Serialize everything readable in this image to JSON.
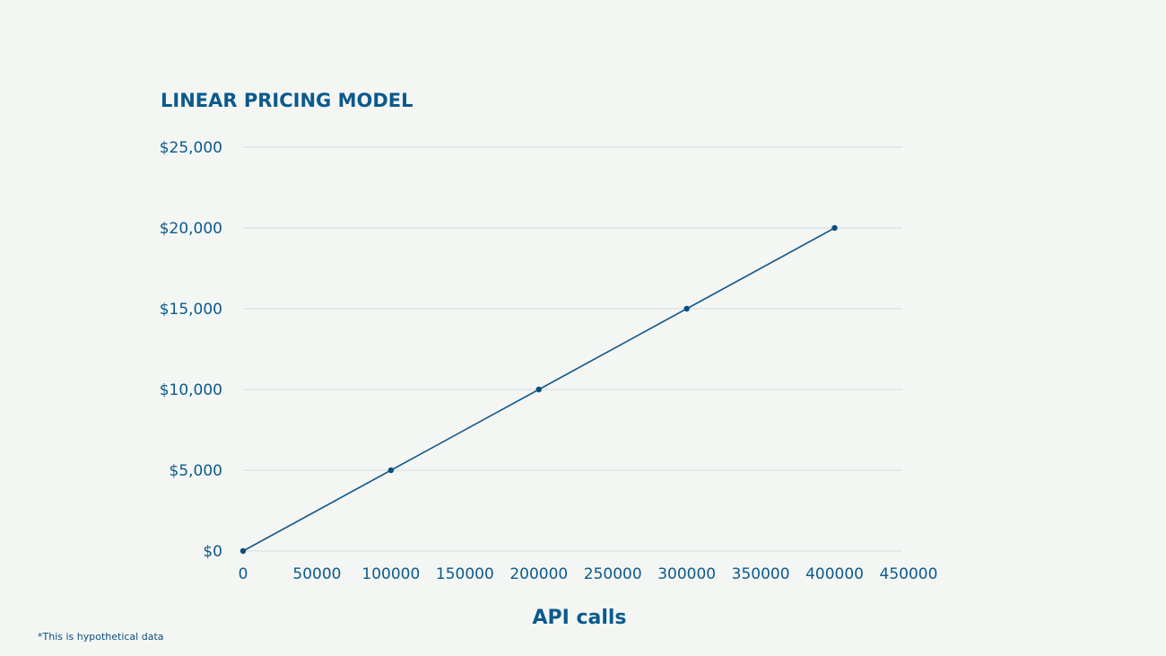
{
  "chart_data": {
    "type": "line",
    "title": "LINEAR PRICING MODEL",
    "xlabel": "API calls",
    "ylabel": "",
    "x_ticks": [
      "0",
      "50000",
      "100000",
      "150000",
      "200000",
      "250000",
      "300000",
      "350000",
      "400000",
      "450000"
    ],
    "y_ticks": [
      "$0",
      "$5,000",
      "$10,000",
      "$15,000",
      "$20,000",
      "$25,000"
    ],
    "xlim": [
      0,
      450000
    ],
    "ylim": [
      0,
      25000
    ],
    "grid": "horizontal",
    "series": [
      {
        "x": [
          0,
          100000,
          200000,
          300000,
          400000
        ],
        "y": [
          0,
          5000,
          10000,
          15000,
          20000
        ],
        "color": "#14588a"
      }
    ]
  },
  "footnote": "*This is hypothetical data"
}
